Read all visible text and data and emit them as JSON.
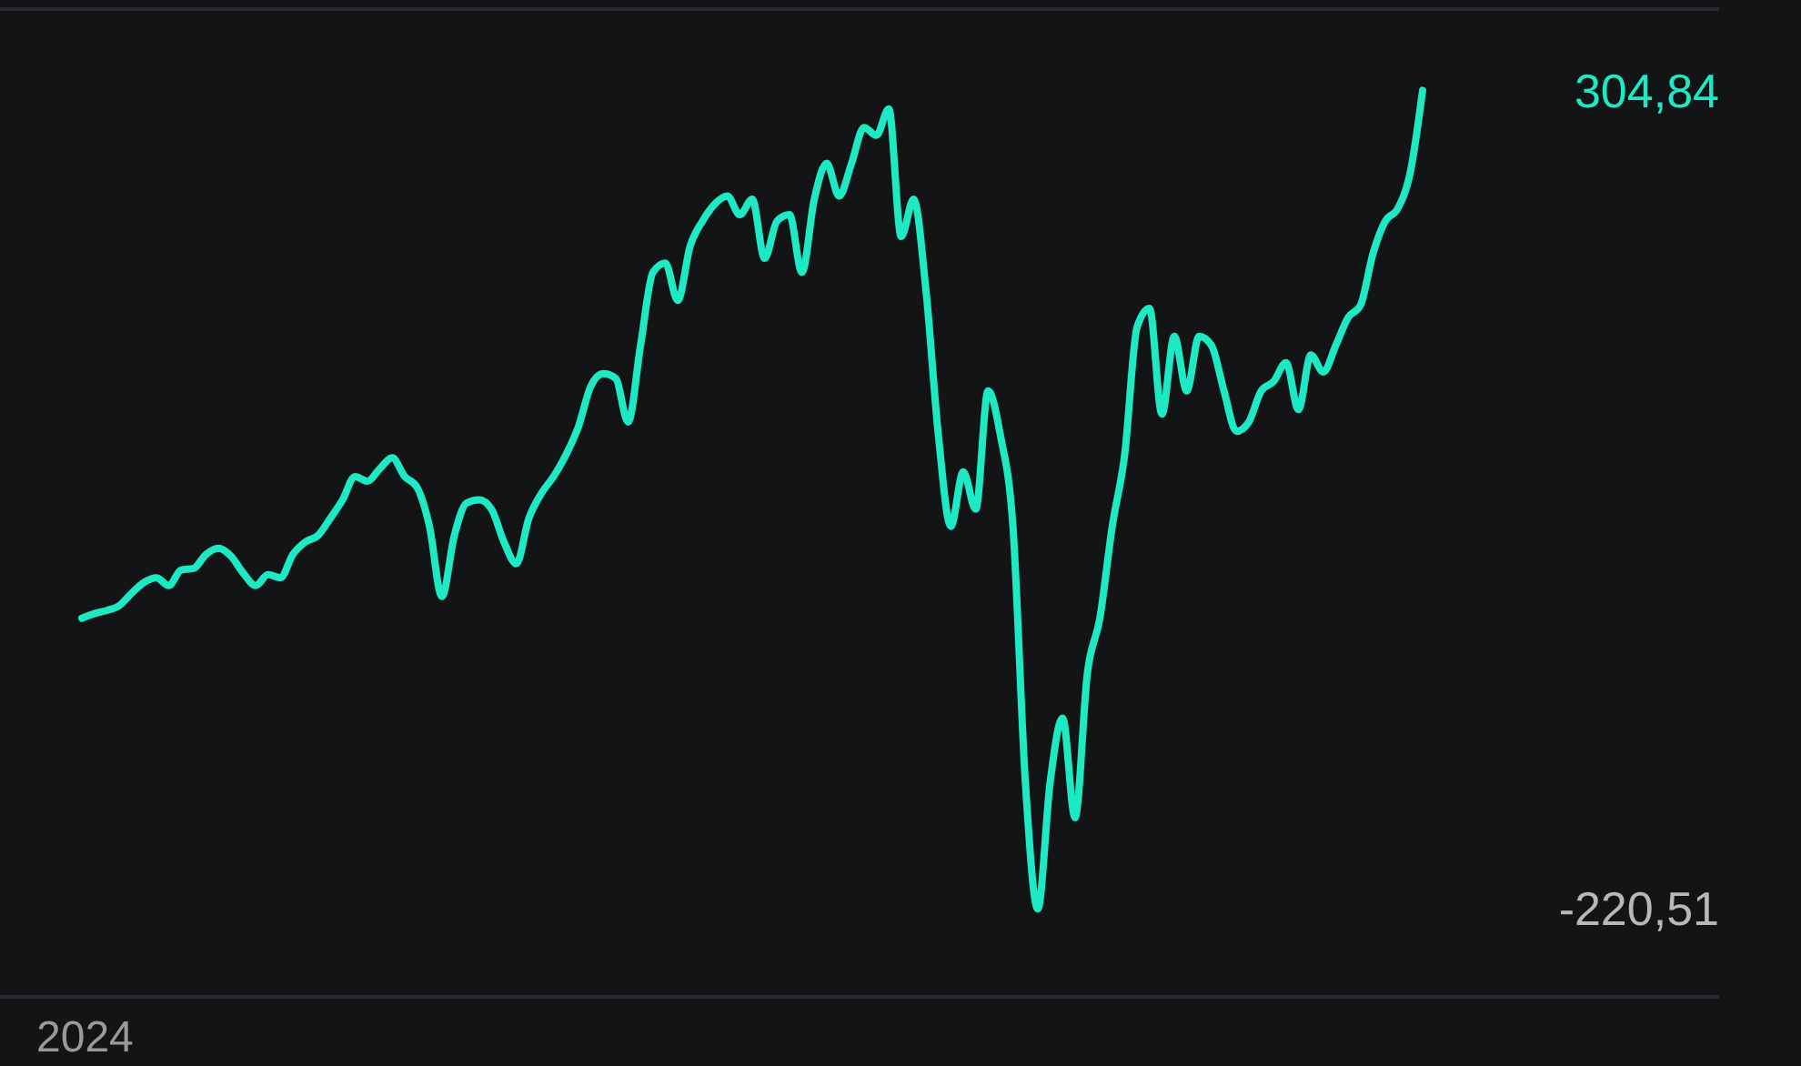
{
  "chart_data": {
    "type": "line",
    "color": "#1de9c4",
    "annotations": [
      "2024"
    ],
    "ylim": [
      -277,
      357
    ],
    "yticks": [
      {
        "value": 304.84,
        "label": "304,84"
      },
      {
        "value": -220.51,
        "label": "-220,51"
      }
    ],
    "categories": [
      null,
      null,
      null,
      null,
      null,
      null,
      null,
      null,
      null,
      null,
      null,
      null,
      null,
      null,
      null,
      null,
      null,
      null,
      null,
      null,
      null,
      null,
      null,
      null,
      null,
      null,
      null,
      null,
      null,
      null,
      null,
      null,
      null,
      null,
      null,
      null,
      null,
      null,
      null,
      null,
      null,
      null,
      null,
      null,
      null,
      null,
      null,
      null,
      null,
      null,
      null,
      null,
      null,
      null,
      null,
      null,
      null,
      null,
      null,
      null,
      null,
      null,
      null,
      null,
      null,
      null,
      null,
      null,
      null,
      null,
      null,
      null,
      null,
      null,
      null,
      null,
      null,
      null,
      null,
      null,
      null,
      null,
      null,
      null,
      null,
      null,
      null,
      null,
      null,
      null,
      null,
      null,
      null,
      null,
      null,
      null,
      null,
      null,
      null,
      null,
      null,
      null,
      null,
      null,
      null,
      null,
      null,
      null,
      null
    ],
    "values": [
      -34,
      -31,
      -29,
      -26,
      -18,
      -11,
      -8,
      -13,
      -3,
      -2,
      7,
      11,
      6,
      -5,
      -13,
      -6,
      -8,
      7,
      15,
      19,
      30,
      42,
      57,
      54,
      62,
      69,
      57,
      50,
      25,
      -20,
      19,
      40,
      42,
      36,
      15,
      1,
      30,
      46,
      57,
      71,
      89,
      115,
      123,
      120,
      92,
      141,
      188,
      194,
      170,
      205,
      221,
      232,
      237,
      225,
      235,
      197,
      221,
      225,
      188,
      235,
      258,
      237,
      258,
      281,
      276,
      293,
      211,
      235,
      176,
      83,
      25,
      60,
      36,
      112,
      83,
      25,
      -139,
      -220.51,
      -139,
      -98,
      -162,
      -69,
      -34,
      25,
      71,
      153,
      165,
      97,
      147,
      112,
      147,
      141,
      112,
      86,
      92,
      112,
      118,
      130,
      100,
      135,
      124,
      141,
      159,
      167,
      200,
      221,
      229,
      252,
      304.84
    ]
  }
}
